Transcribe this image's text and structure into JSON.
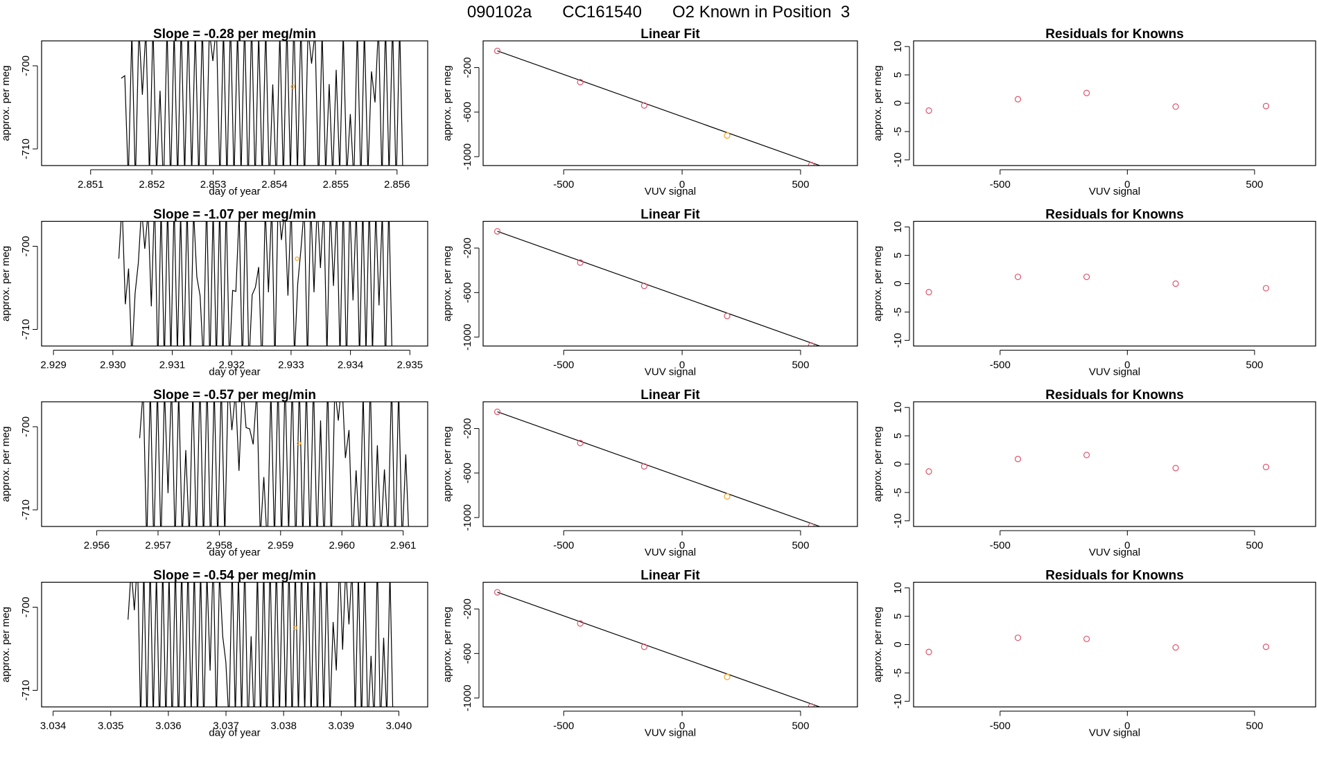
{
  "header": {
    "run_id": "090102a",
    "cylinder": "CC161540",
    "description": "O2 Known in Position  3"
  },
  "colors": {
    "trace": "#000000",
    "point_red": "#df536b",
    "point_orange": "#f5a623",
    "axis": "#000000",
    "frame": "#000000"
  },
  "chart_data": [
    {
      "row": 1,
      "panel": "drift",
      "type": "line",
      "title": "Slope =  -0.28  per meg/min",
      "xlabel": "day of year",
      "ylabel": "approx. per meg",
      "xlim": [
        2.8502,
        2.8565
      ],
      "ylim": [
        -712,
        -697
      ],
      "xticks": [
        "2.851",
        "2.852",
        "2.853",
        "2.854",
        "2.855",
        "2.856"
      ],
      "xtick_values": [
        2.851,
        2.852,
        2.853,
        2.854,
        2.855,
        2.856
      ],
      "yticks": [
        "-700",
        "-710"
      ],
      "ytick_values": [
        -700,
        -710
      ],
      "trace_x_range": [
        2.8515,
        2.8561
      ],
      "trace_cycles": 40,
      "trace_seed": 7,
      "marker": {
        "x": 2.8543,
        "y": -702.5
      }
    },
    {
      "row": 1,
      "panel": "fit",
      "type": "scatter",
      "title": "Linear Fit",
      "xlabel": "VUV signal",
      "ylabel": "approx. per meg",
      "xlim": [
        -840,
        740
      ],
      "ylim": [
        -1080,
        40
      ],
      "xticks": [
        "-500",
        "0",
        "500"
      ],
      "xtick_values": [
        -500,
        0,
        500
      ],
      "yticks": [
        "-200",
        "-600",
        "-1000"
      ],
      "ytick_values": [
        -200,
        -600,
        -1000
      ],
      "points_x": [
        -780,
        -430,
        -160,
        190,
        545
      ],
      "points_y": [
        -50,
        -330,
        -540,
        -810,
        -1075
      ],
      "point_colors": [
        "red",
        "red",
        "red",
        "orange",
        "red"
      ],
      "fit_line": {
        "x": [
          -780,
          700
        ],
        "y": [
          -50,
          -1170
        ]
      }
    },
    {
      "row": 1,
      "panel": "residuals",
      "type": "scatter",
      "title": "Residuals for Knowns",
      "xlabel": "VUV signal",
      "ylabel": "approx. per meg",
      "xlim": [
        -840,
        740
      ],
      "ylim": [
        -11,
        11
      ],
      "xticks": [
        "-500",
        "0",
        "500"
      ],
      "xtick_values": [
        -500,
        0,
        500
      ],
      "yticks": [
        "10",
        "5",
        "0",
        "-5",
        "-10"
      ],
      "ytick_values": [
        10,
        5,
        0,
        -5,
        -10
      ],
      "points_x": [
        -780,
        -430,
        -160,
        190,
        545
      ],
      "points_y": [
        -1.3,
        0.7,
        1.8,
        -0.6,
        -0.5
      ],
      "point_colors": [
        "red",
        "red",
        "red",
        "red",
        "red"
      ]
    },
    {
      "row": 2,
      "panel": "drift",
      "type": "line",
      "title": "Slope =  -1.07  per meg/min",
      "xlabel": "day of year",
      "ylabel": "approx. per meg",
      "xlim": [
        2.9288,
        2.9353
      ],
      "ylim": [
        -712,
        -697
      ],
      "xticks": [
        "2.929",
        "2.930",
        "2.931",
        "2.932",
        "2.933",
        "2.934",
        "2.935"
      ],
      "xtick_values": [
        2.929,
        2.93,
        2.931,
        2.932,
        2.933,
        2.934,
        2.935
      ],
      "yticks": [
        "-700",
        "-710"
      ],
      "ytick_values": [
        -700,
        -710
      ],
      "trace_x_range": [
        2.9301,
        2.9347
      ],
      "trace_cycles": 42,
      "trace_seed": 13,
      "marker": {
        "x": 2.9331,
        "y": -701.5
      }
    },
    {
      "row": 2,
      "panel": "fit",
      "type": "scatter",
      "title": "Linear Fit",
      "xlabel": "VUV signal",
      "ylabel": "approx. per meg",
      "xlim": [
        -840,
        740
      ],
      "ylim": [
        -1080,
        40
      ],
      "xticks": [
        "-500",
        "0",
        "500"
      ],
      "xtick_values": [
        -500,
        0,
        500
      ],
      "yticks": [
        "-200",
        "-600",
        "-1000"
      ],
      "ytick_values": [
        -200,
        -600,
        -1000
      ],
      "points_x": [
        -780,
        -430,
        -160,
        190,
        545
      ],
      "points_y": [
        -50,
        -330,
        -540,
        -810,
        -1075
      ],
      "point_colors": [
        "red",
        "red",
        "red",
        "red",
        "red"
      ],
      "fit_line": {
        "x": [
          -780,
          700
        ],
        "y": [
          -50,
          -1170
        ]
      }
    },
    {
      "row": 2,
      "panel": "residuals",
      "type": "scatter",
      "title": "Residuals for Knowns",
      "xlabel": "VUV signal",
      "ylabel": "approx. per meg",
      "xlim": [
        -840,
        740
      ],
      "ylim": [
        -11,
        11
      ],
      "xticks": [
        "-500",
        "0",
        "500"
      ],
      "xtick_values": [
        -500,
        0,
        500
      ],
      "yticks": [
        "10",
        "5",
        "0",
        "-5",
        "-10"
      ],
      "ytick_values": [
        10,
        5,
        0,
        -5,
        -10
      ],
      "points_x": [
        -780,
        -430,
        -160,
        190,
        545
      ],
      "points_y": [
        -1.5,
        1.2,
        1.2,
        0.0,
        -0.8
      ],
      "point_colors": [
        "red",
        "red",
        "red",
        "red",
        "red"
      ]
    },
    {
      "row": 3,
      "panel": "drift",
      "type": "line",
      "title": "Slope =  -0.57  per meg/min",
      "xlabel": "day of year",
      "ylabel": "approx. per meg",
      "xlim": [
        2.9551,
        2.9614
      ],
      "ylim": [
        -712,
        -697
      ],
      "xticks": [
        "2.956",
        "2.957",
        "2.958",
        "2.959",
        "2.960",
        "2.961"
      ],
      "xtick_values": [
        2.956,
        2.957,
        2.958,
        2.959,
        2.96,
        2.961
      ],
      "yticks": [
        "-700",
        "-710"
      ],
      "ytick_values": [
        -700,
        -710
      ],
      "trace_x_range": [
        2.9567,
        2.9611
      ],
      "trace_cycles": 38,
      "trace_seed": 21,
      "marker": {
        "x": 2.9593,
        "y": -702.0
      }
    },
    {
      "row": 3,
      "panel": "fit",
      "type": "scatter",
      "title": "Linear Fit",
      "xlabel": "VUV signal",
      "ylabel": "approx. per meg",
      "xlim": [
        -840,
        740
      ],
      "ylim": [
        -1080,
        40
      ],
      "xticks": [
        "-500",
        "0",
        "500"
      ],
      "xtick_values": [
        -500,
        0,
        500
      ],
      "yticks": [
        "-200",
        "-600",
        "-1000"
      ],
      "ytick_values": [
        -200,
        -600,
        -1000
      ],
      "points_x": [
        -780,
        -430,
        -160,
        190,
        545
      ],
      "points_y": [
        -50,
        -330,
        -540,
        -810,
        -1075
      ],
      "point_colors": [
        "red",
        "red",
        "red",
        "orange",
        "red"
      ],
      "fit_line": {
        "x": [
          -780,
          700
        ],
        "y": [
          -50,
          -1170
        ]
      }
    },
    {
      "row": 3,
      "panel": "residuals",
      "type": "scatter",
      "title": "Residuals for Knowns",
      "xlabel": "VUV signal",
      "ylabel": "approx. per meg",
      "xlim": [
        -840,
        740
      ],
      "ylim": [
        -11,
        11
      ],
      "xticks": [
        "-500",
        "0",
        "500"
      ],
      "xtick_values": [
        -500,
        0,
        500
      ],
      "yticks": [
        "10",
        "5",
        "0",
        "-5",
        "-10"
      ],
      "ytick_values": [
        10,
        5,
        0,
        -5,
        -10
      ],
      "points_x": [
        -780,
        -430,
        -160,
        190,
        545
      ],
      "points_y": [
        -1.3,
        0.9,
        1.6,
        -0.7,
        -0.5
      ],
      "point_colors": [
        "red",
        "red",
        "red",
        "red",
        "red"
      ]
    },
    {
      "row": 4,
      "panel": "drift",
      "type": "line",
      "title": "Slope =  -0.54  per meg/min",
      "xlabel": "day of year",
      "ylabel": "approx. per meg",
      "xlim": [
        3.0338,
        3.0405
      ],
      "ylim": [
        -712,
        -697
      ],
      "xticks": [
        "3.034",
        "3.035",
        "3.036",
        "3.037",
        "3.038",
        "3.039",
        "3.040"
      ],
      "xtick_values": [
        3.034,
        3.035,
        3.036,
        3.037,
        3.038,
        3.039,
        3.04
      ],
      "yticks": [
        "-700",
        "-710"
      ],
      "ytick_values": [
        -700,
        -710
      ],
      "trace_x_range": [
        3.0353,
        3.0399
      ],
      "trace_cycles": 42,
      "trace_seed": 33,
      "marker": {
        "x": 3.0382,
        "y": -702.5
      }
    },
    {
      "row": 4,
      "panel": "fit",
      "type": "scatter",
      "title": "Linear Fit",
      "xlabel": "VUV signal",
      "ylabel": "approx. per meg",
      "xlim": [
        -840,
        740
      ],
      "ylim": [
        -1080,
        40
      ],
      "xticks": [
        "-500",
        "0",
        "500"
      ],
      "xtick_values": [
        -500,
        0,
        500
      ],
      "yticks": [
        "-200",
        "-600",
        "-1000"
      ],
      "ytick_values": [
        -200,
        -600,
        -1000
      ],
      "points_x": [
        -780,
        -430,
        -160,
        190,
        545
      ],
      "points_y": [
        -50,
        -330,
        -540,
        -810,
        -1075
      ],
      "point_colors": [
        "red",
        "red",
        "red",
        "orange",
        "red"
      ],
      "fit_line": {
        "x": [
          -780,
          700
        ],
        "y": [
          -50,
          -1170
        ]
      }
    },
    {
      "row": 4,
      "panel": "residuals",
      "type": "scatter",
      "title": "Residuals for Knowns",
      "xlabel": "VUV signal",
      "ylabel": "approx. per meg",
      "xlim": [
        -840,
        740
      ],
      "ylim": [
        -11,
        11
      ],
      "xticks": [
        "-500",
        "0",
        "500"
      ],
      "xtick_values": [
        -500,
        0,
        500
      ],
      "yticks": [
        "10",
        "5",
        "0",
        "-5",
        "-10"
      ],
      "ytick_values": [
        10,
        5,
        0,
        -5,
        -10
      ],
      "points_x": [
        -780,
        -430,
        -160,
        190,
        545
      ],
      "points_y": [
        -1.3,
        1.2,
        1.0,
        -0.5,
        -0.4
      ],
      "point_colors": [
        "red",
        "red",
        "red",
        "red",
        "red"
      ]
    }
  ]
}
